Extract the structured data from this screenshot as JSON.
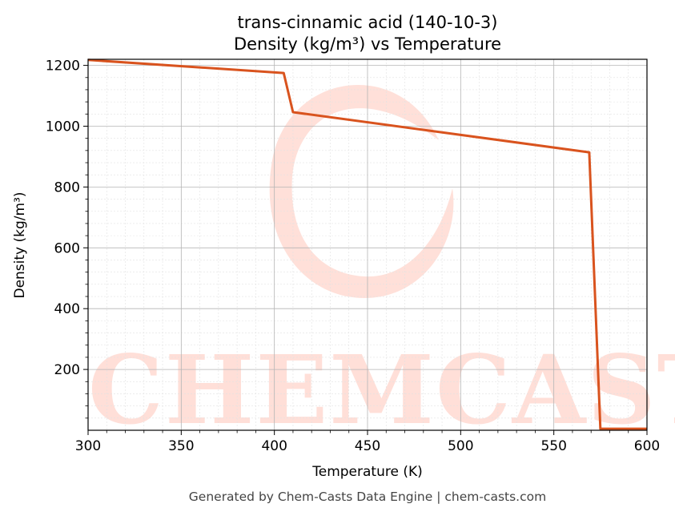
{
  "watermark": {
    "text": "CHEMCASTS"
  },
  "footer": "Generated by Chem-Casts Data Engine | chem-casts.com",
  "chart_data": {
    "type": "line",
    "title": "trans-cinnamic acid (140-10-3)",
    "subtitle": "Density (kg/m³) vs Temperature",
    "xlabel": "Temperature (K)",
    "ylabel": "Density (kg/m³)",
    "xlim": [
      300,
      600
    ],
    "ylim": [
      0,
      1220
    ],
    "xticks": [
      300,
      350,
      400,
      450,
      500,
      550,
      600
    ],
    "yticks": [
      200,
      400,
      600,
      800,
      1000,
      1200
    ],
    "grid": true,
    "line_color": "#d9531e",
    "series": [
      {
        "x": [
          300,
          405,
          410,
          569,
          575,
          600
        ],
        "values": [
          1218,
          1175,
          1046,
          914,
          5,
          5
        ]
      }
    ]
  }
}
